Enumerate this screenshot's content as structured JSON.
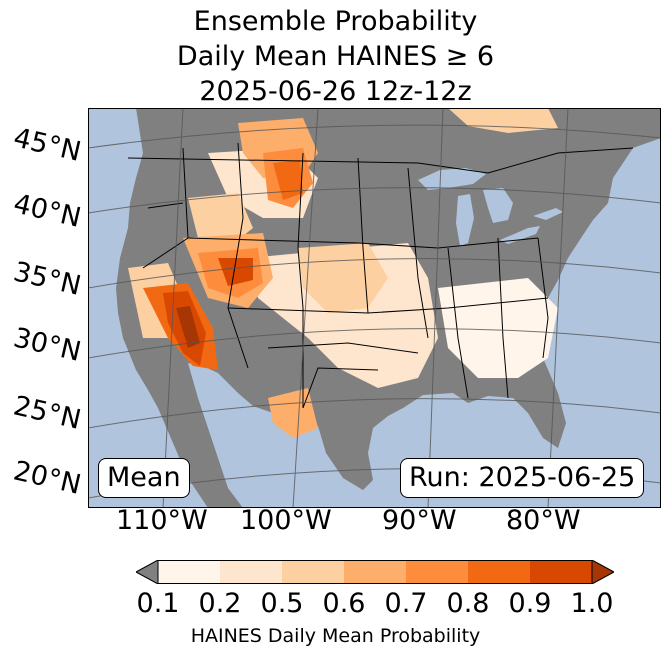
{
  "title": {
    "line1": "Ensemble Probability",
    "line2": "Daily Mean HAINES ≥ 6",
    "line3": "2025-06-26 12z-12z"
  },
  "map": {
    "lat_labels": [
      "45°N",
      "40°N",
      "35°N",
      "30°N",
      "25°N",
      "20°N"
    ],
    "lon_labels": [
      "110°W",
      "100°W",
      "90°W",
      "80°W"
    ],
    "colors": {
      "ocean": "#b0c4de",
      "land_masked": "#808080",
      "grid": "#555555"
    },
    "hotspots": [
      {
        "region": "Desert Southwest / Arizona",
        "level": 1.0
      },
      {
        "region": "Southern California",
        "level": 0.9
      },
      {
        "region": "Great Basin / Utah",
        "level": 0.9
      },
      {
        "region": "Wyoming / Montana",
        "level": 0.9
      },
      {
        "region": "Southern Plains",
        "level": 0.5
      },
      {
        "region": "Southeast",
        "level": 0.2
      }
    ]
  },
  "annotations": {
    "left_box": "Mean",
    "right_box": "Run: 2025-06-25"
  },
  "colorbar": {
    "ticks": [
      "0.1",
      "0.2",
      "0.5",
      "0.6",
      "0.7",
      "0.8",
      "0.9",
      "1.0"
    ],
    "colors": [
      "#fff5eb",
      "#fee6ce",
      "#fdd0a2",
      "#fdae6b",
      "#fd8d3c",
      "#f16913",
      "#d94801",
      "#a63603"
    ],
    "under_color": "#808080",
    "label": "HAINES Daily Mean Probability"
  }
}
